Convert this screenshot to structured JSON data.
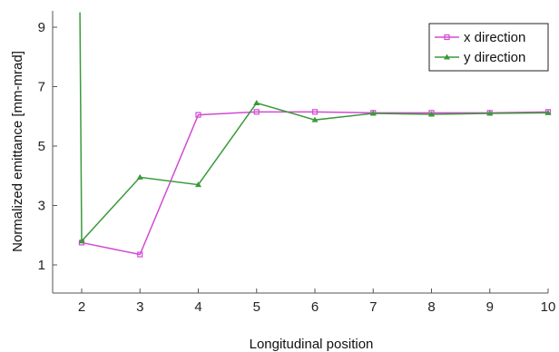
{
  "chart_data": {
    "type": "line",
    "title": "",
    "xlabel": "Longitudinal position",
    "ylabel": "Normalized emittance [mm-mrad]",
    "xlim": [
      1.5,
      10
    ],
    "ylim": [
      0,
      9.5
    ],
    "xticks": [
      2,
      3,
      4,
      5,
      6,
      7,
      8,
      9,
      10
    ],
    "yticks": [
      1,
      3,
      5,
      7,
      9
    ],
    "grid": false,
    "legend_position": "top-right",
    "series": [
      {
        "name": "x direction",
        "color": "#d24bd2",
        "marker": "square",
        "points": [
          [
            2,
            1.75
          ],
          [
            3,
            1.35
          ],
          [
            4,
            6.05
          ],
          [
            5,
            6.15
          ],
          [
            6,
            6.15
          ],
          [
            7,
            6.12
          ],
          [
            8,
            6.12
          ],
          [
            9,
            6.12
          ],
          [
            10,
            6.15
          ]
        ]
      },
      {
        "name": "y direction",
        "color": "#3a9a3a",
        "marker": "triangle",
        "points": [
          [
            1.97,
            9.5
          ],
          [
            2,
            1.8
          ],
          [
            3,
            3.95
          ],
          [
            4,
            3.7
          ],
          [
            5,
            6.45
          ],
          [
            6,
            5.88
          ],
          [
            7,
            6.1
          ],
          [
            8,
            6.07
          ],
          [
            9,
            6.1
          ],
          [
            10,
            6.12
          ]
        ]
      }
    ]
  }
}
